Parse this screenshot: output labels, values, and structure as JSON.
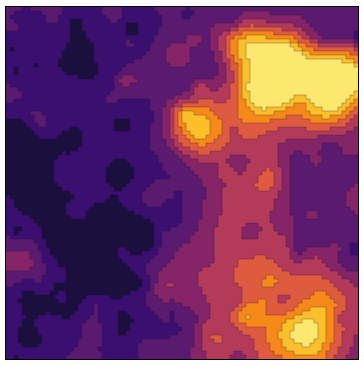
{
  "chart_data": {
    "type": "heatmap",
    "title": "",
    "xlabel": "",
    "ylabel": "",
    "style": "filled-contour",
    "colormap": "inferno",
    "grid": false,
    "legend": "none",
    "colorbar": false,
    "palette": {
      "level_0": "#1a0f3d",
      "level_1": "#3b0f70",
      "level_2": "#5a1a70",
      "level_3": "#852466",
      "level_4": "#b43a5a",
      "level_5": "#de5b3f",
      "level_6": "#f7891a",
      "level_7": "#fbbf2a",
      "level_8": "#fce86f",
      "contour_line": "#1a1033"
    }
  }
}
